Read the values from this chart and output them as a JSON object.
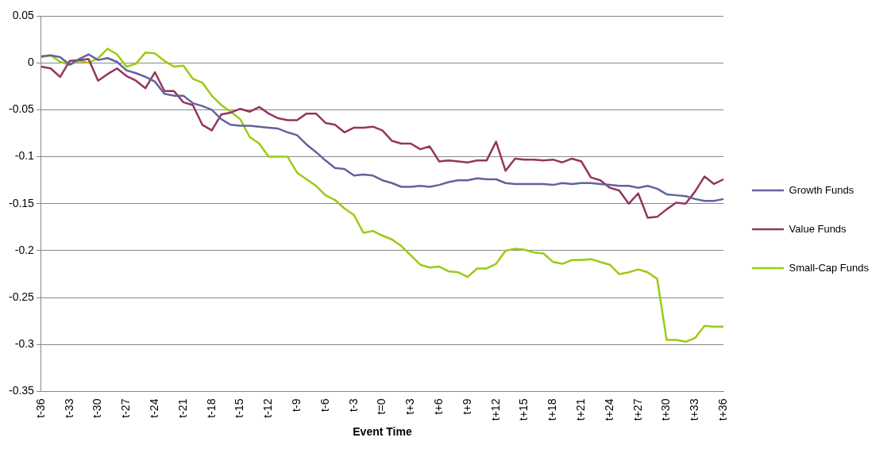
{
  "chart_data": {
    "type": "line",
    "xlabel": "Event Time",
    "categories": [
      "t-36",
      null,
      null,
      "t-33",
      null,
      null,
      "t-30",
      null,
      null,
      "t-27",
      null,
      null,
      "t-24",
      null,
      null,
      "t-21",
      null,
      null,
      "t-18",
      null,
      null,
      "t-15",
      null,
      null,
      "t-12",
      null,
      null,
      "t-9",
      null,
      null,
      "t-6",
      null,
      null,
      "t-3",
      null,
      null,
      "t=0",
      null,
      null,
      "t+3",
      null,
      null,
      "t+6",
      null,
      null,
      "t+9",
      null,
      null,
      "t+12",
      null,
      null,
      "t+15",
      null,
      null,
      "t+18",
      null,
      null,
      "t+21",
      null,
      null,
      "t+24",
      null,
      null,
      "t+27",
      null,
      null,
      "t+30",
      null,
      null,
      "t+33",
      null,
      null,
      "t+36"
    ],
    "series": [
      {
        "name": "Growth Funds",
        "color": "#62639b",
        "values": [
          0.007,
          0.008,
          0.006,
          -0.002,
          0.004,
          0.009,
          0.003,
          0.005,
          0.001,
          -0.008,
          -0.011,
          -0.015,
          -0.02,
          -0.033,
          -0.035,
          -0.035,
          -0.043,
          -0.046,
          -0.05,
          -0.06,
          -0.066,
          -0.067,
          -0.067,
          -0.068,
          -0.069,
          -0.07,
          -0.074,
          -0.077,
          -0.087,
          -0.095,
          -0.104,
          -0.112,
          -0.113,
          -0.12,
          -0.119,
          -0.12,
          -0.125,
          -0.128,
          -0.132,
          -0.132,
          -0.131,
          -0.132,
          -0.13,
          -0.127,
          -0.125,
          -0.125,
          -0.123,
          -0.124,
          -0.124,
          -0.128,
          -0.129,
          -0.129,
          -0.129,
          -0.129,
          -0.13,
          -0.128,
          -0.129,
          -0.128,
          -0.128,
          -0.129,
          -0.13,
          -0.131,
          -0.131,
          -0.133,
          -0.131,
          -0.134,
          -0.14,
          -0.141,
          -0.142,
          -0.145,
          -0.147,
          -0.147,
          -0.145
        ]
      },
      {
        "name": "Value Funds",
        "color": "#953560",
        "values": [
          -0.004,
          -0.006,
          -0.015,
          0.002,
          0.003,
          0.004,
          -0.019,
          -0.012,
          -0.006,
          -0.014,
          -0.019,
          -0.027,
          -0.01,
          -0.03,
          -0.03,
          -0.042,
          -0.045,
          -0.066,
          -0.072,
          -0.055,
          -0.053,
          -0.049,
          -0.052,
          -0.047,
          -0.054,
          -0.059,
          -0.061,
          -0.061,
          -0.054,
          -0.054,
          -0.064,
          -0.066,
          -0.074,
          -0.069,
          -0.069,
          -0.068,
          -0.072,
          -0.083,
          -0.086,
          -0.086,
          -0.092,
          -0.089,
          -0.105,
          -0.104,
          -0.105,
          -0.106,
          -0.104,
          -0.104,
          -0.084,
          -0.115,
          -0.102,
          -0.103,
          -0.103,
          -0.104,
          -0.103,
          -0.106,
          -0.102,
          -0.105,
          -0.122,
          -0.125,
          -0.133,
          -0.136,
          -0.15,
          -0.139,
          -0.165,
          -0.164,
          -0.156,
          -0.149,
          -0.15,
          -0.137,
          -0.121,
          -0.129,
          -0.124
        ]
      },
      {
        "name": "Small-Cap Funds",
        "color": "#99cc11",
        "values": [
          0.006,
          0.008,
          0.001,
          -0.002,
          0.002,
          0.0,
          0.005,
          0.015,
          0.009,
          -0.004,
          -0.001,
          0.011,
          0.01,
          0.002,
          -0.004,
          -0.003,
          -0.017,
          -0.021,
          -0.035,
          -0.045,
          -0.052,
          -0.06,
          -0.079,
          -0.086,
          -0.1,
          -0.1,
          -0.1,
          -0.117,
          -0.124,
          -0.131,
          -0.141,
          -0.146,
          -0.155,
          -0.162,
          -0.181,
          -0.179,
          -0.184,
          -0.188,
          -0.195,
          -0.205,
          -0.215,
          -0.218,
          -0.217,
          -0.222,
          -0.223,
          -0.228,
          -0.219,
          -0.219,
          -0.214,
          -0.2,
          -0.198,
          -0.199,
          -0.202,
          -0.203,
          -0.212,
          -0.214,
          -0.21,
          -0.21,
          -0.209,
          -0.212,
          -0.215,
          -0.225,
          -0.223,
          -0.22,
          -0.223,
          -0.23,
          -0.295,
          -0.295,
          -0.297,
          -0.293,
          -0.28,
          -0.281,
          -0.281
        ]
      }
    ],
    "ylim": [
      -0.35,
      0.05
    ],
    "yticks": [
      -0.35,
      -0.3,
      -0.25,
      -0.2,
      -0.15,
      -0.1,
      -0.05,
      0,
      0.05
    ],
    "grid": "y",
    "legend": "right",
    "marker": "none",
    "line_style": "solid"
  }
}
